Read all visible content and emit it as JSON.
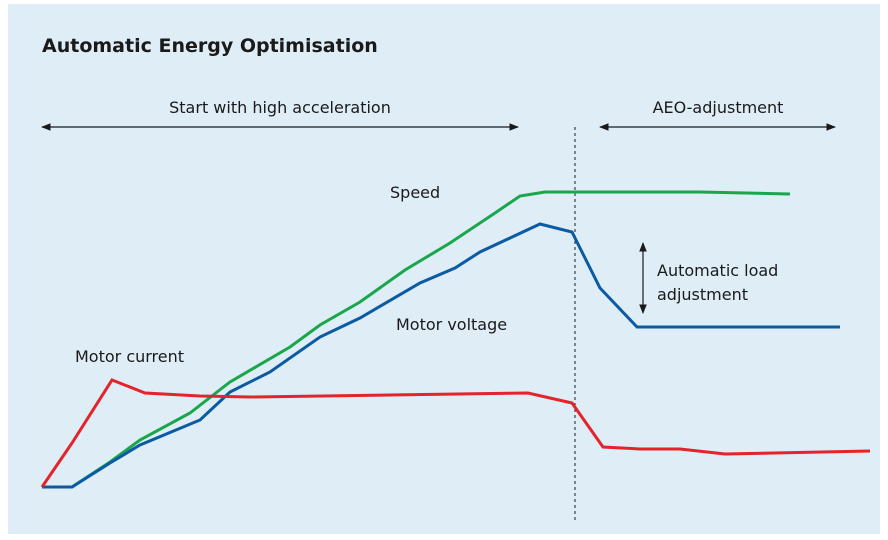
{
  "title": "Automatic Energy Optimisation",
  "phases": [
    {
      "label": "Start with high acceleration"
    },
    {
      "label": "AEO-adjustment"
    }
  ],
  "curves": [
    {
      "label": "Speed"
    },
    {
      "label": "Motor voltage"
    },
    {
      "label": "Motor current"
    }
  ],
  "annotation": {
    "lines": [
      "Automatic load",
      "adjustment"
    ]
  }
}
